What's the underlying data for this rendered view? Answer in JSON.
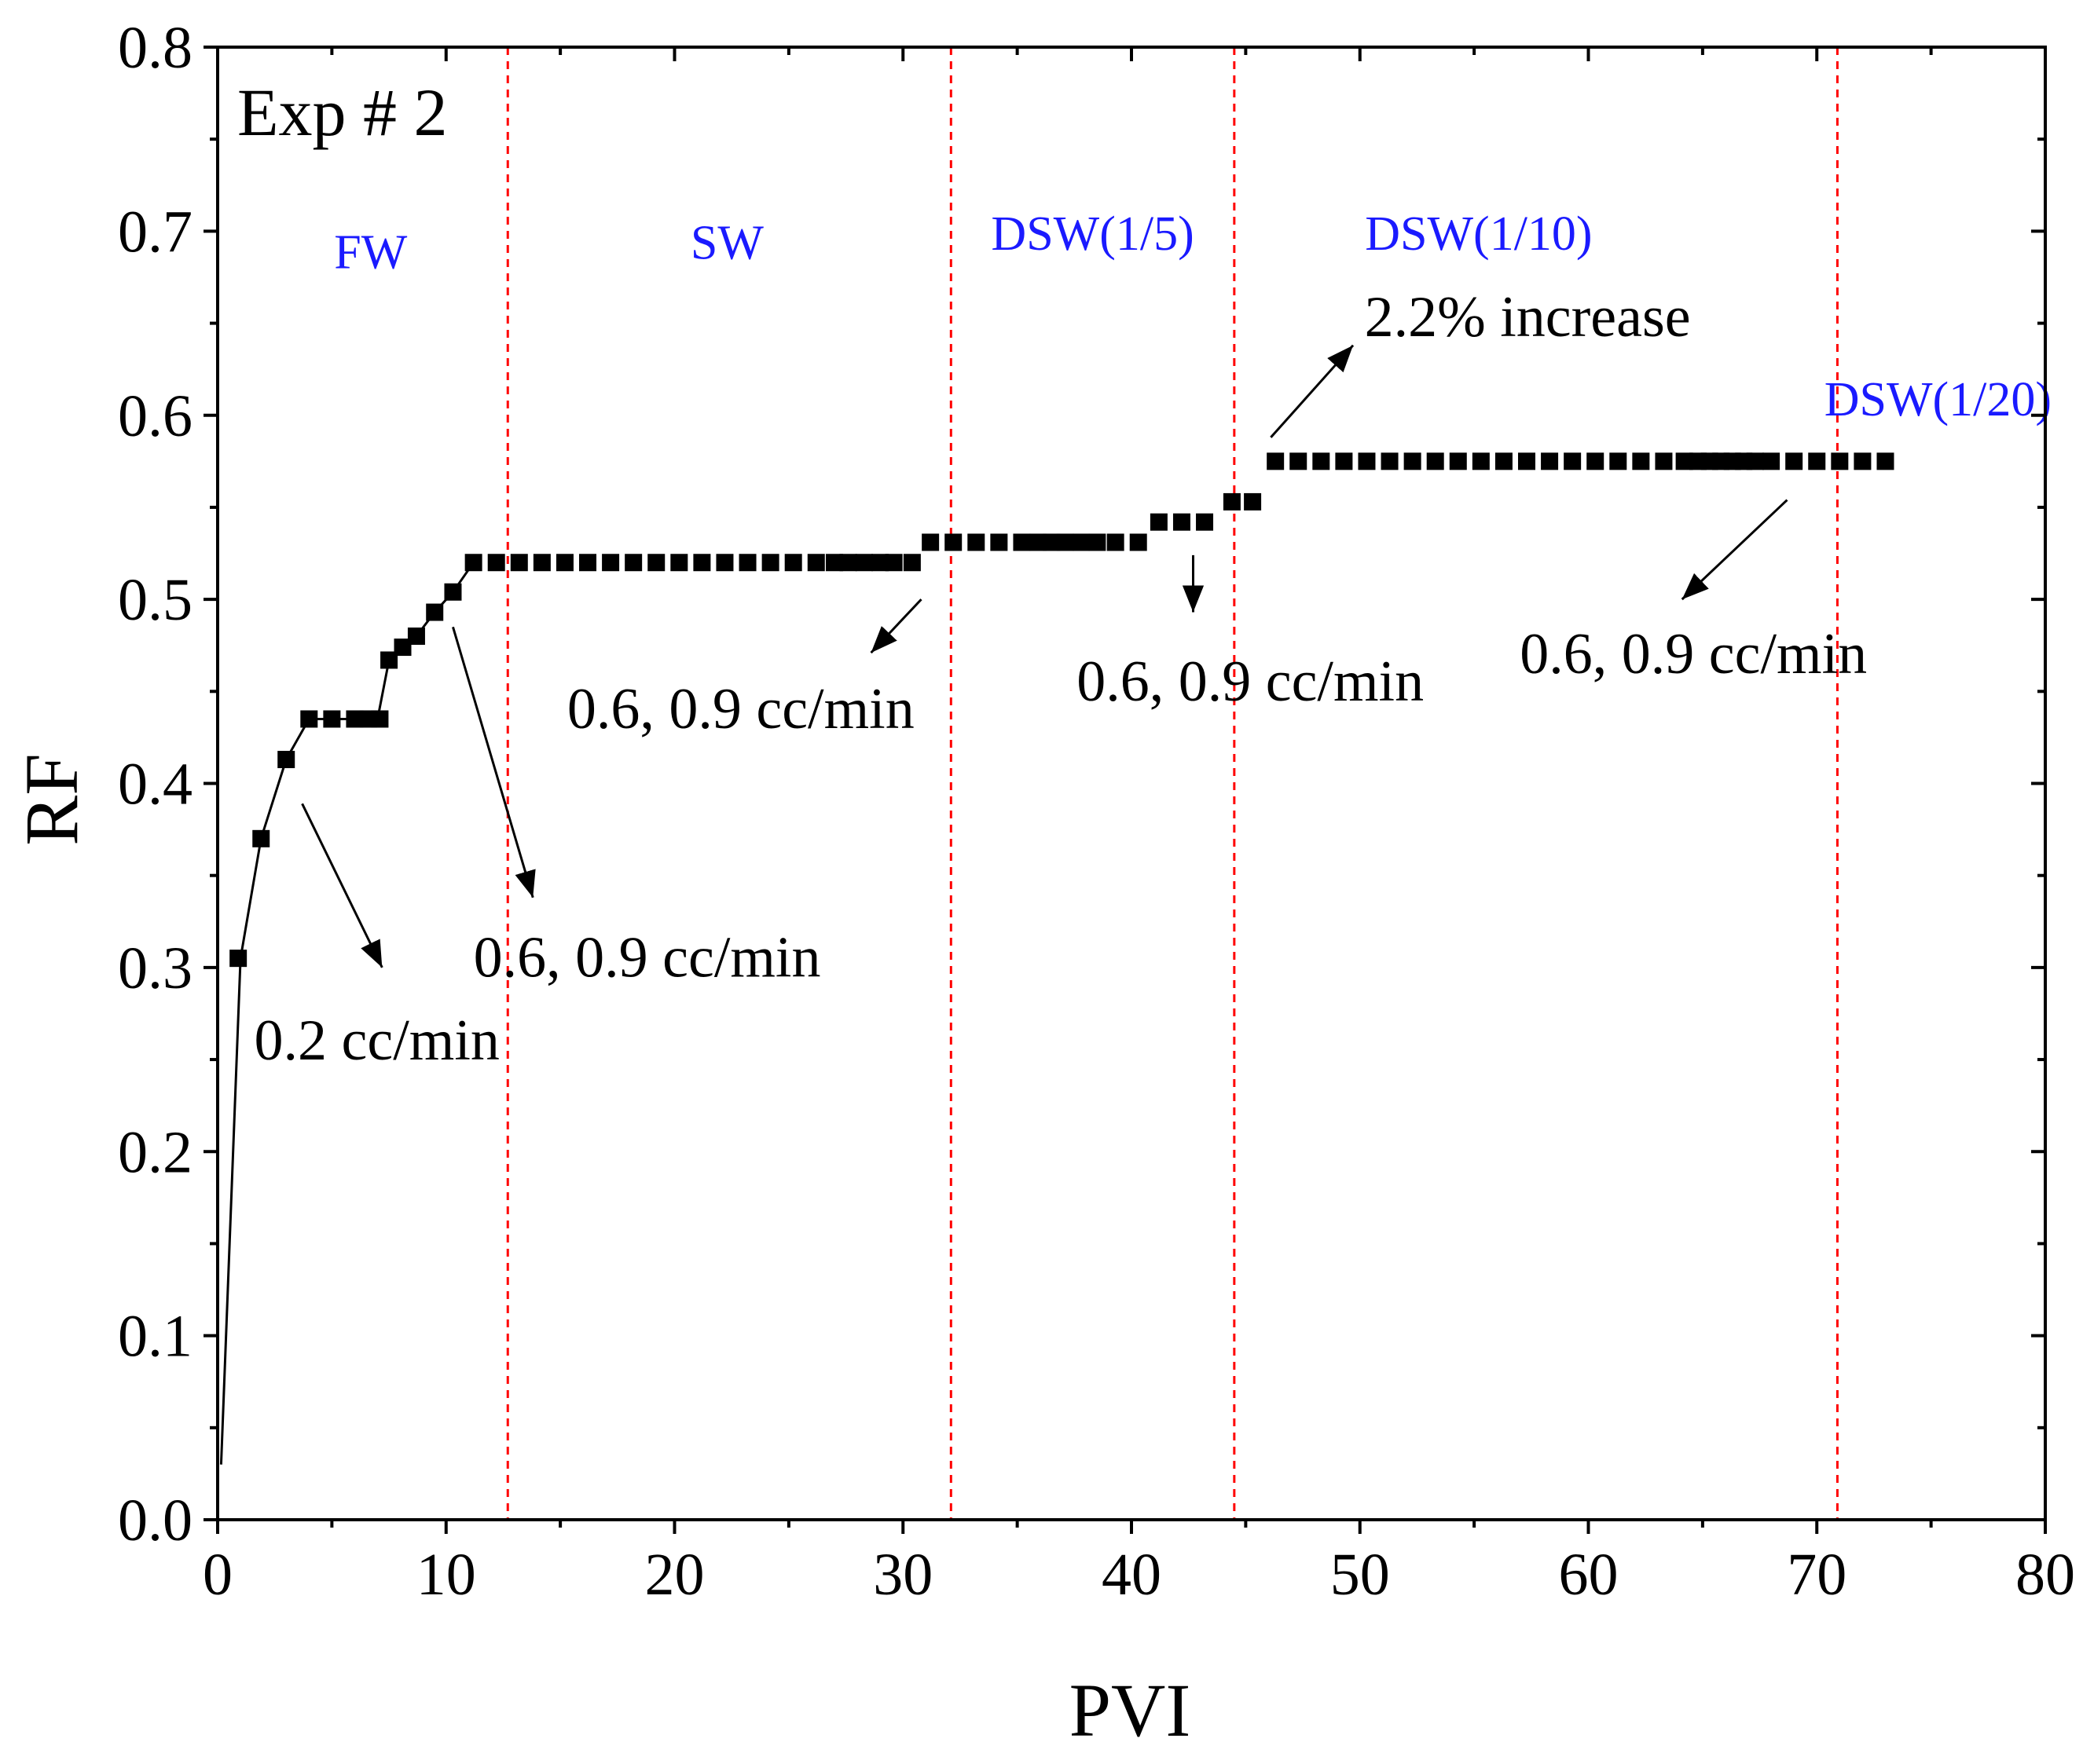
{
  "colors": {
    "phase_text": "#1a1aff",
    "phase_line": "#ff0000",
    "marker": "#000000",
    "axis": "#000000"
  },
  "chart_data": {
    "type": "scatter",
    "title": "Exp # 2",
    "xlabel": "PVI",
    "ylabel": "RF",
    "xlim": [
      0,
      80
    ],
    "ylim": [
      0,
      0.8
    ],
    "x_ticks": [
      "0",
      "10",
      "20",
      "30",
      "40",
      "50",
      "60",
      "70",
      "80"
    ],
    "y_ticks": [
      "0.0",
      "0.1",
      "0.2",
      "0.3",
      "0.4",
      "0.5",
      "0.6",
      "0.7",
      "0.8"
    ],
    "phase_boundaries": [
      12.7,
      32.1,
      44.5,
      70.9
    ],
    "phases": [
      {
        "label": "FW",
        "x": 6.7,
        "y": 0.68
      },
      {
        "label": "SW",
        "x": 22.3,
        "y": 0.685
      },
      {
        "label": "DSW(1/5)",
        "x": 38.3,
        "y": 0.69
      },
      {
        "label": "DSW(1/10)",
        "x": 55.2,
        "y": 0.69
      },
      {
        "label": "DSW(1/20)",
        "x": 75.3,
        "y": 0.6
      }
    ],
    "annotations": [
      {
        "text": "0.2 cc/min",
        "x": 1.6,
        "y": 0.25,
        "arrow_from": [
          3.7,
          0.389
        ],
        "arrow_to": [
          7.2,
          0.3
        ]
      },
      {
        "text": "0.6, 0.9 cc/min",
        "x": 11.2,
        "y": 0.295,
        "arrow_from": [
          10.3,
          0.485
        ],
        "arrow_to": [
          13.8,
          0.338
        ]
      },
      {
        "text": "0.6, 0.9 cc/min",
        "x": 15.3,
        "y": 0.43,
        "arrow_from": [
          30.8,
          0.5
        ],
        "arrow_to": [
          28.6,
          0.471
        ]
      },
      {
        "text": "0.6, 0.9 cc/min",
        "x": 37.6,
        "y": 0.445,
        "arrow_from": [
          42.7,
          0.524
        ],
        "arrow_to": [
          42.7,
          0.493
        ]
      },
      {
        "text": "2.2% increase",
        "x": 50.2,
        "y": 0.643,
        "arrow_from": [
          46.1,
          0.588
        ],
        "arrow_to": [
          49.7,
          0.638
        ]
      },
      {
        "text": "0.6, 0.9 cc/min",
        "x": 57.0,
        "y": 0.46,
        "arrow_from": [
          68.7,
          0.554
        ],
        "arrow_to": [
          64.1,
          0.5
        ]
      }
    ],
    "series": [
      {
        "name": "RF",
        "line_points": [
          [
            0.15,
            0.03
          ],
          [
            1.0,
            0.305
          ],
          [
            1.9,
            0.37
          ],
          [
            3.0,
            0.413
          ],
          [
            4.0,
            0.435
          ],
          [
            7.0,
            0.435
          ],
          [
            7.5,
            0.467
          ],
          [
            8.1,
            0.474
          ],
          [
            8.7,
            0.48
          ],
          [
            9.5,
            0.493
          ],
          [
            10.3,
            0.504
          ],
          [
            11.2,
            0.52
          ]
        ],
        "x": [
          0.9,
          1.9,
          3.0,
          4.0,
          5.0,
          6.0,
          6.6,
          7.1,
          7.5,
          8.1,
          8.7,
          9.5,
          10.3,
          11.2,
          12.2,
          13.2,
          14.2,
          15.2,
          16.2,
          17.2,
          18.2,
          19.2,
          20.2,
          21.2,
          22.2,
          23.2,
          24.2,
          25.2,
          26.2,
          27.0,
          27.6,
          28.3,
          29.0,
          29.6,
          30.4,
          31.2,
          32.2,
          33.2,
          34.2,
          35.2,
          35.9,
          36.5,
          37.1,
          37.8,
          38.5,
          39.3,
          40.3,
          41.2,
          42.2,
          43.2,
          44.4,
          45.3,
          46.3,
          47.3,
          48.3,
          49.3,
          50.3,
          51.3,
          52.3,
          53.3,
          54.3,
          55.3,
          56.3,
          57.3,
          58.3,
          59.3,
          60.3,
          61.3,
          62.3,
          63.3,
          64.2,
          64.8,
          65.3,
          65.8,
          66.3,
          66.8,
          67.3,
          68.0,
          69.0,
          70.0,
          71.0,
          72.0,
          73.0
        ],
        "y": [
          0.305,
          0.37,
          0.413,
          0.435,
          0.435,
          0.435,
          0.435,
          0.435,
          0.467,
          0.474,
          0.48,
          0.493,
          0.504,
          0.52,
          0.52,
          0.52,
          0.52,
          0.52,
          0.52,
          0.52,
          0.52,
          0.52,
          0.52,
          0.52,
          0.52,
          0.52,
          0.52,
          0.52,
          0.52,
          0.52,
          0.52,
          0.52,
          0.52,
          0.52,
          0.52,
          0.531,
          0.531,
          0.531,
          0.531,
          0.531,
          0.531,
          0.531,
          0.531,
          0.531,
          0.531,
          0.531,
          0.531,
          0.542,
          0.542,
          0.542,
          0.553,
          0.553,
          0.575,
          0.575,
          0.575,
          0.575,
          0.575,
          0.575,
          0.575,
          0.575,
          0.575,
          0.575,
          0.575,
          0.575,
          0.575,
          0.575,
          0.575,
          0.575,
          0.575,
          0.575,
          0.575,
          0.575,
          0.575,
          0.575,
          0.575,
          0.575,
          0.575,
          0.575,
          0.575,
          0.575,
          0.575,
          0.575,
          0.575
        ]
      }
    ]
  }
}
